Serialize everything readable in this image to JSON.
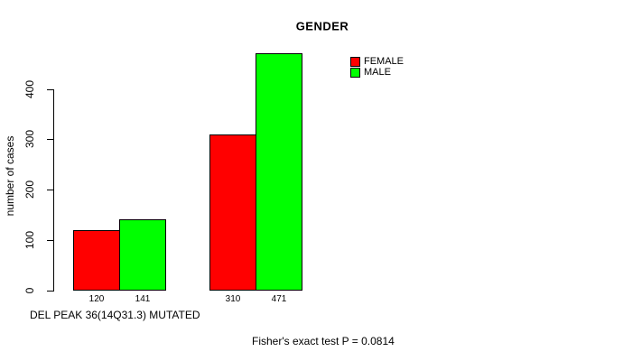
{
  "chart_data": {
    "type": "bar",
    "title": "GENDER",
    "ylabel": "number of cases",
    "xlabel": "DEL PEAK 36(14Q31.3) MUTATED",
    "annotation": "Fisher's exact test P = 0.0814",
    "series": [
      {
        "name": "FEMALE",
        "color": "#FF0000",
        "values": [
          120,
          310
        ]
      },
      {
        "name": "MALE",
        "color": "#00FF00",
        "values": [
          141,
          471
        ]
      }
    ],
    "value_labels": [
      "120",
      "141",
      "310",
      "471"
    ],
    "yticks": [
      "0",
      "100",
      "200",
      "300",
      "400"
    ],
    "ylim": [
      0,
      471
    ],
    "axis_range_shown": [
      0,
      400
    ],
    "grid": false,
    "legend_position": "top-right-inside",
    "axis_color": "#000000",
    "background_color": "#FFFFFF"
  }
}
